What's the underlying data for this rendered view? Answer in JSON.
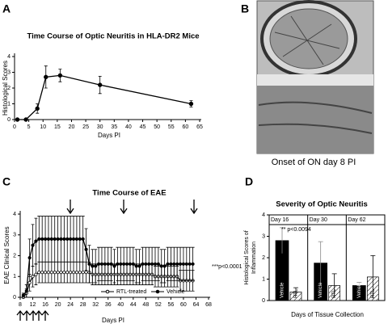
{
  "panels": {
    "letters": [
      "A",
      "B",
      "C",
      "D"
    ],
    "b_caption": "Onset of ON day 8 PI"
  },
  "chart_data": [
    {
      "type": "line",
      "title": "Time Course of Optic Neuritis in HLA-DR2 Mice",
      "x_label": "Days PI",
      "y_label": "Histological Scores",
      "x": [
        1,
        4,
        8,
        11,
        16,
        30,
        62
      ],
      "series": [
        {
          "name": "Histological Scores",
          "color": "#000000",
          "marker": "filled",
          "values": [
            0,
            0,
            0.7,
            2.7,
            2.8,
            2.2,
            1.0
          ],
          "errors": [
            0,
            0,
            0.3,
            0.7,
            0.4,
            0.55,
            0.2
          ]
        }
      ],
      "xlim": [
        0,
        65
      ],
      "xticks": [
        0,
        5,
        10,
        15,
        20,
        25,
        30,
        35,
        40,
        45,
        50,
        55,
        60,
        65
      ],
      "ylim": [
        0,
        4
      ],
      "yticks": [
        0,
        1,
        2,
        3,
        4
      ]
    },
    {
      "type": "line",
      "title": "Time Course of EAE",
      "x_label": "Days PI",
      "y_label": "EAE Clinical Scores",
      "annotation": "***p<0.0001",
      "legend": "bottom",
      "x": [
        9,
        10,
        11,
        12,
        13,
        14,
        15,
        16,
        17,
        18,
        19,
        20,
        21,
        22,
        23,
        24,
        25,
        26,
        27,
        28,
        29,
        30,
        31,
        32,
        33,
        34,
        35,
        36,
        37,
        38,
        39,
        40,
        41,
        42,
        43,
        44,
        45,
        46,
        47,
        48,
        49,
        50,
        51,
        52,
        53,
        54,
        55,
        56,
        57,
        58,
        59,
        60,
        61,
        62,
        63
      ],
      "series": [
        {
          "name": "RTL-treated",
          "color": "#000000",
          "marker": "open",
          "values": [
            0,
            0.2,
            0.7,
            1.0,
            1.1,
            1.2,
            1.2,
            1.2,
            1.2,
            1.2,
            1.2,
            1.2,
            1.2,
            1.2,
            1.2,
            1.2,
            1.2,
            1.2,
            1.2,
            1.2,
            1.2,
            1.2,
            1.1,
            1.1,
            1.1,
            1.1,
            1.1,
            1.1,
            1.1,
            1.1,
            1.1,
            1.1,
            1.1,
            1.1,
            1.1,
            1.1,
            1.1,
            1.1,
            1.1,
            1.1,
            1.1,
            1.1,
            1.0,
            1.0,
            1.0,
            1.0,
            1.0,
            1.0,
            1.0,
            1.0,
            0.8,
            0.8,
            0.8,
            0.8,
            0.8
          ],
          "errors": [
            0,
            0.2,
            0.4,
            0.5,
            0.5,
            0.5,
            0.5,
            0.5,
            0.5,
            0.5,
            0.5,
            0.5,
            0.5,
            0.5,
            0.5,
            0.5,
            0.5,
            0.5,
            0.5,
            0.5,
            0.5,
            0.5,
            0.5,
            0.5,
            0.5,
            0.5,
            0.5,
            0.5,
            0.5,
            0.5,
            0.5,
            0.5,
            0.5,
            0.5,
            0.5,
            0.5,
            0.5,
            0.5,
            0.5,
            0.5,
            0.5,
            0.5,
            0.5,
            0.5,
            0.5,
            0.5,
            0.5,
            0.5,
            0.5,
            0.5,
            0.5,
            0.5,
            0.5,
            0.5,
            0.5
          ]
        },
        {
          "name": "Vehicle",
          "color": "#000000",
          "marker": "filled",
          "values": [
            0.1,
            0.3,
            1.9,
            2.5,
            2.7,
            2.8,
            2.8,
            2.8,
            2.8,
            2.8,
            2.8,
            2.8,
            2.8,
            2.8,
            2.8,
            2.8,
            2.8,
            2.8,
            2.8,
            2.8,
            2.3,
            1.6,
            1.5,
            1.5,
            1.6,
            1.6,
            1.6,
            1.6,
            1.6,
            1.5,
            1.6,
            1.6,
            1.6,
            1.6,
            1.6,
            1.6,
            1.5,
            1.5,
            1.6,
            1.6,
            1.6,
            1.6,
            1.6,
            1.6,
            1.5,
            1.5,
            1.6,
            1.6,
            1.6,
            1.6,
            1.6,
            1.6,
            1.6,
            1.6,
            1.6
          ],
          "errors": [
            0.1,
            0.3,
            0.9,
            1.0,
            1.1,
            1.1,
            1.1,
            1.1,
            1.1,
            1.1,
            1.1,
            1.1,
            1.1,
            1.1,
            1.1,
            1.1,
            1.1,
            1.1,
            1.1,
            1.1,
            1.0,
            0.9,
            0.8,
            0.8,
            0.8,
            0.8,
            0.8,
            0.8,
            0.8,
            0.8,
            0.8,
            0.8,
            0.8,
            0.8,
            0.8,
            0.8,
            0.8,
            0.8,
            0.8,
            0.8,
            0.8,
            0.8,
            0.8,
            0.8,
            0.8,
            0.8,
            0.8,
            0.8,
            0.8,
            0.8,
            0.8,
            0.8,
            0.8,
            0.8,
            0.8
          ]
        }
      ],
      "xlim": [
        8,
        68
      ],
      "xticks": [
        8,
        12,
        16,
        20,
        24,
        28,
        32,
        36,
        40,
        44,
        48,
        52,
        56,
        60,
        64,
        68
      ],
      "ylim": [
        0,
        4
      ],
      "yticks": [
        0,
        1,
        2,
        3,
        4
      ]
    },
    {
      "type": "bar",
      "title": "Severity of Optic Neuritis",
      "x_label": "Days of Tissue Collection",
      "y_label": [
        "Histological Scores of",
        "Inflammation"
      ],
      "annotation": "** p<0.0094",
      "categories": [
        "Day 16",
        "Day 30",
        "Day 62"
      ],
      "series": [
        {
          "name": "Vehicle",
          "color": "#000000",
          "values": [
            2.8,
            1.75,
            0.7
          ],
          "errors": [
            0.6,
            1.0,
            0.15
          ]
        },
        {
          "name": "RTL",
          "color": "#ffffff",
          "pattern": "hatch",
          "values": [
            0.4,
            0.7,
            1.1
          ],
          "errors": [
            0.2,
            0.55,
            1.0
          ]
        }
      ],
      "ylim": [
        0,
        4
      ],
      "yticks": [
        0,
        1,
        2,
        3,
        4
      ]
    }
  ]
}
